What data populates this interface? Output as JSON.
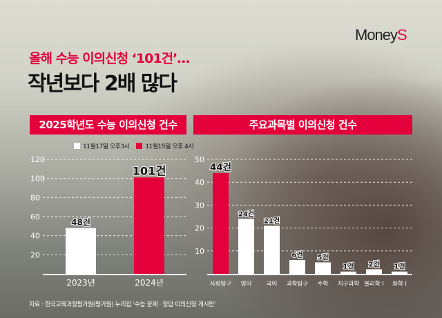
{
  "logo": {
    "text_main": "Money",
    "text_accent": "S"
  },
  "headline": {
    "subtitle": "올해 수능 이의신청 ‘101건’…",
    "title": "작년보다 2배 많다"
  },
  "colors": {
    "accent": "#e4003a",
    "white": "#ffffff"
  },
  "chart_data": [
    {
      "type": "bar",
      "title": "2025학년도 수능 이의신청 건수",
      "legend": [
        {
          "label": "11월17일 오후3시",
          "color": "#ffffff"
        },
        {
          "label": "11월15일 오후 4시",
          "color": "#e4003a"
        }
      ],
      "legend_placement": "top-right",
      "categories": [
        "2023년",
        "2024년"
      ],
      "values": [
        48,
        101
      ],
      "data_labels": [
        "48건",
        "101건"
      ],
      "bar_colors": [
        "#ffffff",
        "#e4003a"
      ],
      "ylim": [
        0,
        120
      ],
      "yticks": [
        20,
        40,
        60,
        80,
        100,
        120
      ],
      "grid": true
    },
    {
      "type": "bar",
      "title": "주요과목별 이의신청 건수",
      "categories": [
        "사회탐구",
        "영어",
        "국어",
        "과학탐구",
        "수학",
        "지구과학",
        "물리학 I",
        "화학 I"
      ],
      "values": [
        44,
        24,
        21,
        6,
        5,
        1,
        2,
        1
      ],
      "data_labels": [
        "44건",
        "24건",
        "21건",
        "6건",
        "5건",
        "1건",
        "2건",
        "1건"
      ],
      "bar_colors": [
        "#e4003a",
        "#ffffff",
        "#ffffff",
        "#ffffff",
        "#ffffff",
        "#ffffff",
        "#ffffff",
        "#ffffff"
      ],
      "ylim": [
        0,
        50
      ],
      "yticks": [
        10,
        20,
        30,
        40,
        50
      ],
      "grid": true
    }
  ],
  "source": "자료 : 한국교육과정평가원(평가원) 누리집 ‘수능 문제 · 정답 이의신청 게시판’"
}
